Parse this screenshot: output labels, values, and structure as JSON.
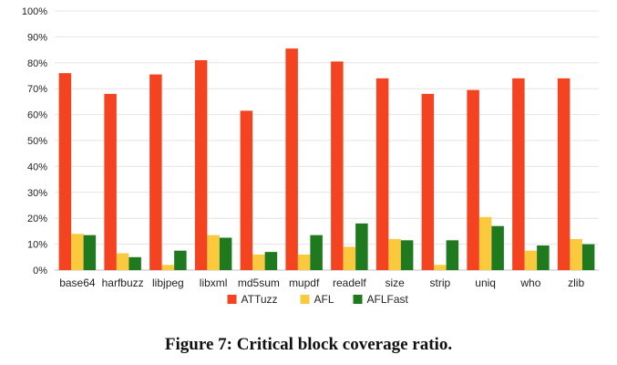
{
  "caption": "Figure 7: Critical block coverage ratio.",
  "chart_data": {
    "type": "bar",
    "title": "",
    "xlabel": "",
    "ylabel": "",
    "ylim": [
      0,
      100
    ],
    "y_ticks": [
      "0%",
      "10%",
      "20%",
      "30%",
      "40%",
      "50%",
      "60%",
      "70%",
      "80%",
      "90%",
      "100%"
    ],
    "grid": true,
    "legend_position": "bottom",
    "categories": [
      "base64",
      "harfbuzz",
      "libjpeg",
      "libxml",
      "md5sum",
      "mupdf",
      "readelf",
      "size",
      "strip",
      "uniq",
      "who",
      "zlib"
    ],
    "series": [
      {
        "name": "ATTuzz",
        "color": "#f44321",
        "values": [
          76,
          68,
          75.5,
          81,
          61.5,
          85.5,
          80.5,
          74,
          68,
          69.5,
          74,
          74
        ]
      },
      {
        "name": "AFL",
        "color": "#fbc93d",
        "values": [
          14,
          6.5,
          2,
          13.5,
          6,
          6,
          9,
          12,
          2,
          20.5,
          7.5,
          12
        ]
      },
      {
        "name": "AFLFast",
        "color": "#1f7a1f",
        "values": [
          13.5,
          5,
          7.5,
          12.5,
          7,
          13.5,
          18,
          11.5,
          11.5,
          17,
          9.5,
          10
        ]
      }
    ]
  }
}
